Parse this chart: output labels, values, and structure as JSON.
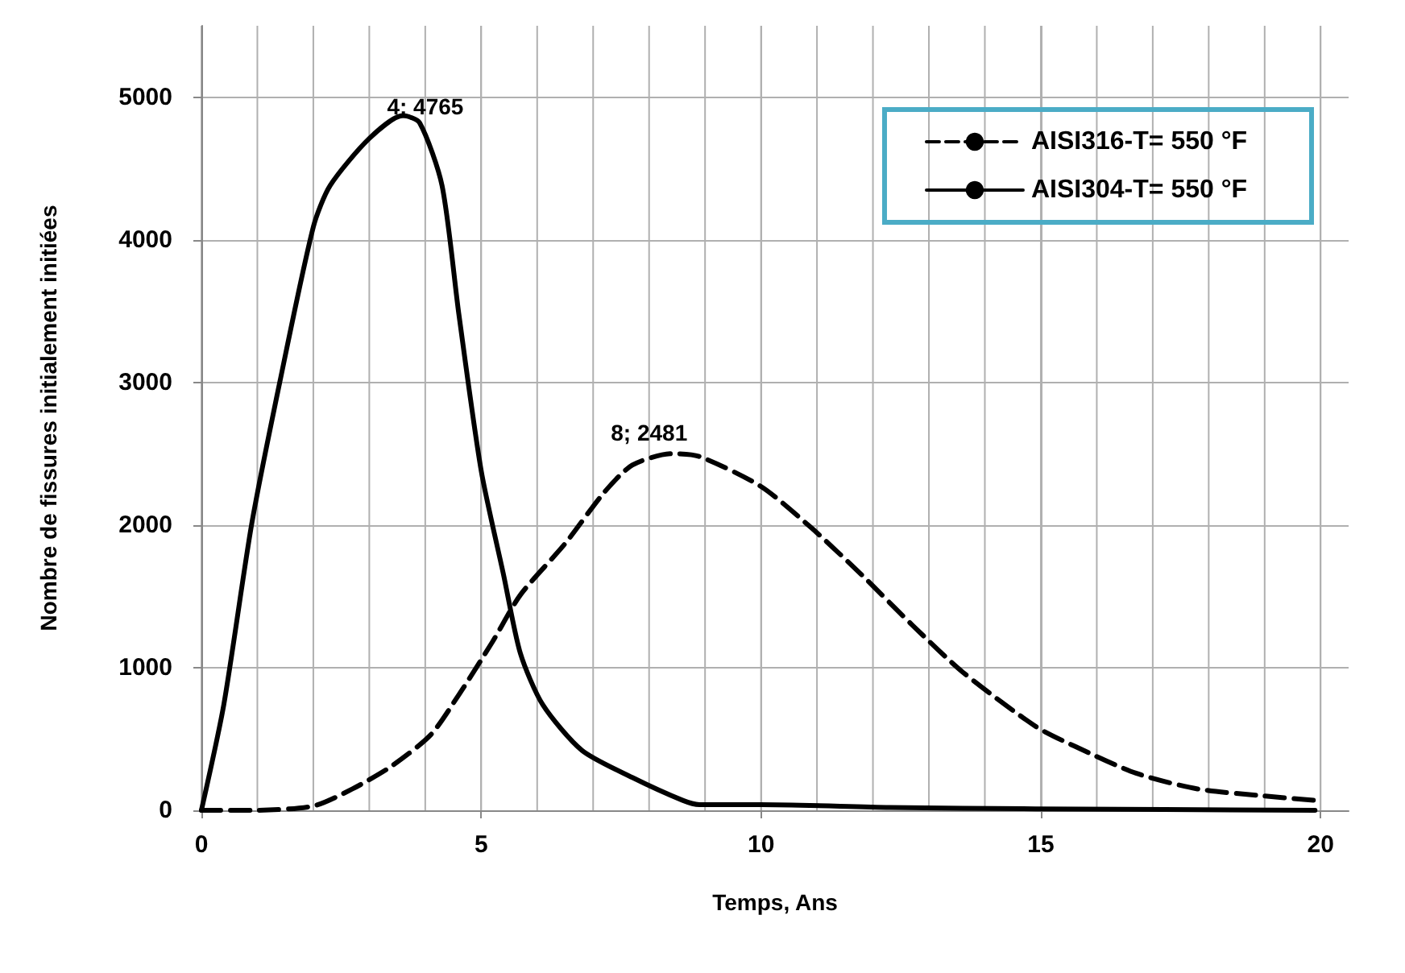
{
  "chart_data": {
    "type": "line",
    "xlabel": "Temps, Ans",
    "ylabel": "Nombre de fissures initialement initiées",
    "xlim": [
      0,
      20.5
    ],
    "xticks": [
      0,
      5,
      10,
      15,
      20
    ],
    "ylim": [
      0,
      5500
    ],
    "yticks": [
      0,
      1000,
      2000,
      3000,
      4000,
      5000
    ],
    "grid": true,
    "legend": "top right",
    "marker": "none",
    "series": [
      {
        "name": "AISI316-T= 550 °F",
        "color": "#000000",
        "line_style": "dashed",
        "x": [
          0,
          0.9,
          2,
          2.7,
          3.4,
          4.1,
          4.6,
          5.2,
          5.7,
          6.5,
          7.2,
          7.7,
          8.4,
          8.9,
          10,
          10.9,
          11.8,
          12.7,
          13.6,
          14.9,
          15.6,
          16.7,
          17.8,
          19,
          19.9
        ],
        "values": [
          0,
          0,
          30,
          150,
          310,
          530,
          810,
          1180,
          1510,
          1870,
          2230,
          2420,
          2500,
          2480,
          2270,
          1980,
          1650,
          1300,
          970,
          590,
          450,
          260,
          150,
          100,
          70
        ]
      },
      {
        "name": "AISI304-T= 550 °F",
        "color": "#000000",
        "line_style": "solid",
        "x": [
          0,
          0.4,
          0.9,
          1.4,
          2,
          2.3,
          3,
          3.6,
          3.9,
          4.3,
          4.6,
          5,
          5.4,
          5.7,
          6.1,
          6.8,
          7.7,
          8.6,
          8.9,
          10,
          12.3,
          14.9,
          19.9
        ],
        "values": [
          0,
          740,
          2010,
          3000,
          4090,
          4380,
          4710,
          4870,
          4820,
          4380,
          3480,
          2380,
          1650,
          1100,
          740,
          420,
          230,
          70,
          40,
          40,
          20,
          10,
          0
        ]
      }
    ],
    "annotations": [
      {
        "text": "4; 4765",
        "x": 4,
        "y": 4765
      },
      {
        "text": "8; 2481",
        "x": 8,
        "y": 2481
      }
    ]
  }
}
